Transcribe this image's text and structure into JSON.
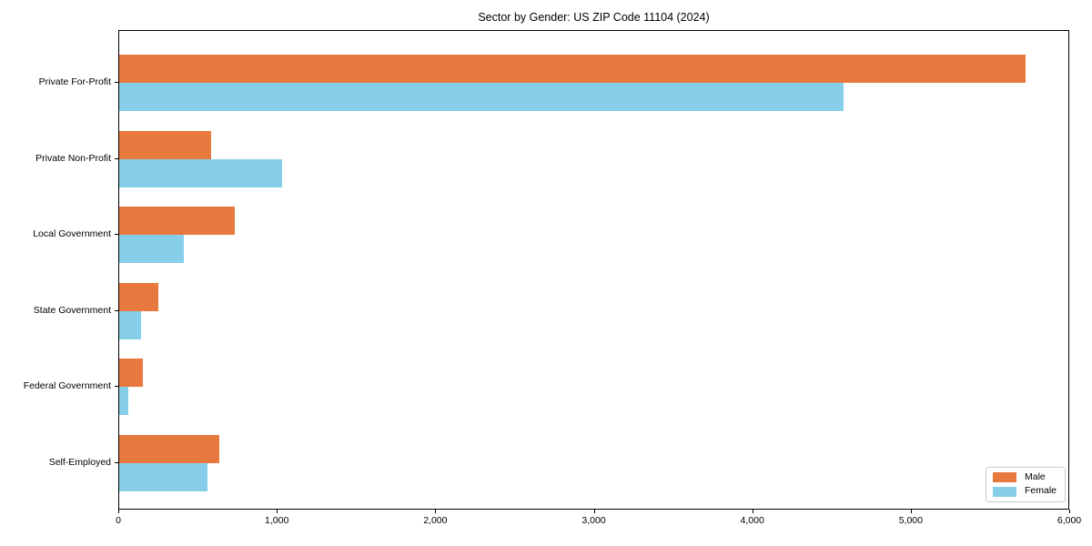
{
  "title": "Sector by Gender: US ZIP Code 11104 (2024)",
  "chart_data": {
    "type": "bar",
    "orientation": "horizontal",
    "title": "Sector by Gender: US ZIP Code 11104 (2024)",
    "categories": [
      "Private For-Profit",
      "Private Non-Profit",
      "Local Government",
      "State Government",
      "Federal Government",
      "Self-Employed"
    ],
    "series": [
      {
        "name": "Male",
        "color": "#e8793e",
        "values": [
          5730,
          580,
          730,
          250,
          150,
          635
        ]
      },
      {
        "name": "Female",
        "color": "#87ceeb",
        "values": [
          4580,
          1030,
          410,
          140,
          60,
          560
        ]
      }
    ],
    "xlim": [
      0,
      6000
    ],
    "xticks": [
      0,
      1000,
      2000,
      3000,
      4000,
      5000,
      6000
    ],
    "xtick_labels": [
      "0",
      "1,000",
      "2,000",
      "3,000",
      "4,000",
      "5,000",
      "6,000"
    ],
    "xlabel": "",
    "ylabel": "",
    "grid": false,
    "legend_position": "lower right"
  }
}
